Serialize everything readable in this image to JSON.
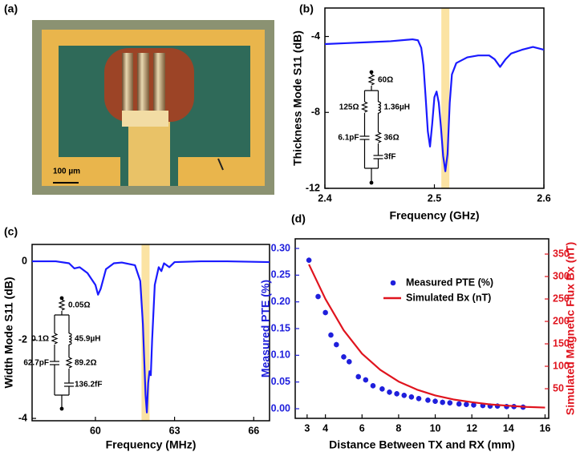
{
  "image": {
    "label": "(a)",
    "scale_bar": "100 µm"
  },
  "chart_data": [
    {
      "type": "line",
      "panel_label": "(b)",
      "xlabel": "Frequency (GHz)",
      "ylabel": "Thickness Mode  S11 (dB)",
      "xlim": [
        2.4,
        2.6
      ],
      "xticks": [
        2.4,
        2.5,
        2.6
      ],
      "ylim": [
        -12,
        -2.5
      ],
      "yticks": [
        -4,
        -8,
        -12
      ],
      "highlight_x": 2.51,
      "color": "#1a1aff",
      "x": [
        2.4,
        2.42,
        2.44,
        2.46,
        2.48,
        2.485,
        2.488,
        2.49,
        2.492,
        2.494,
        2.496,
        2.498,
        2.5,
        2.502,
        2.504,
        2.506,
        2.508,
        2.51,
        2.512,
        2.514,
        2.516,
        2.52,
        2.53,
        2.54,
        2.55,
        2.555,
        2.56,
        2.565,
        2.57,
        2.58,
        2.59,
        2.6
      ],
      "values": [
        -4.4,
        -4.35,
        -4.3,
        -4.25,
        -4.15,
        -4.2,
        -4.6,
        -5.5,
        -7.2,
        -9.0,
        -9.8,
        -8.6,
        -7.2,
        -6.9,
        -7.5,
        -8.8,
        -10.3,
        -11.1,
        -10.2,
        -7.5,
        -6.0,
        -5.4,
        -5.1,
        -5.0,
        -5.0,
        -5.2,
        -5.6,
        -5.2,
        -4.9,
        -4.7,
        -4.55,
        -4.7
      ],
      "circuit_labels": [
        "60Ω",
        "125Ω",
        "1.36µH",
        "6.1pF",
        "36Ω",
        "3fF"
      ]
    },
    {
      "type": "line",
      "panel_label": "(c)",
      "xlabel": "Frequency (MHz)",
      "ylabel": "Width Mode  S11 (dB)",
      "xlim": [
        57.6,
        66.6
      ],
      "xticks": [
        60,
        63,
        66
      ],
      "ylim": [
        -4.06,
        0.43
      ],
      "yticks": [
        0,
        -2,
        -4
      ],
      "highlight_x": 61.9,
      "color": "#1a1aff",
      "x": [
        57.6,
        58.5,
        59.0,
        59.2,
        59.4,
        59.7,
        60.0,
        60.1,
        60.2,
        60.4,
        60.7,
        61.0,
        61.5,
        61.7,
        61.8,
        61.9,
        61.95,
        62.0,
        62.05,
        62.1,
        62.15,
        62.25,
        62.4,
        62.5,
        62.6,
        62.8,
        63.0,
        64,
        65,
        66.6
      ],
      "values": [
        0,
        0,
        -0.05,
        -0.18,
        -0.15,
        -0.3,
        -0.6,
        -0.85,
        -0.7,
        -0.2,
        -0.05,
        -0.03,
        -0.1,
        -0.5,
        -1.6,
        -3.4,
        -3.85,
        -3.1,
        -2.8,
        -2.9,
        -2.0,
        -0.6,
        -0.15,
        -0.25,
        -0.05,
        -0.15,
        -0.02,
        0,
        0,
        -0.02
      ],
      "circuit_labels": [
        "0.05Ω",
        "0.1Ω",
        "45.9µH",
        "62.7pF",
        "89.2Ω",
        "136.2fF"
      ]
    },
    {
      "type": "dual",
      "panel_label": "(d)",
      "xlabel": "Distance Between TX and RX (mm)",
      "ylabel": "Measured PTE (%)",
      "y2label": "Simulated Magnetic Flux Bx (nT)",
      "xlim": [
        2.35,
        16.2
      ],
      "xticks": [
        3,
        4,
        6,
        8,
        10,
        12,
        14,
        16
      ],
      "ylim": [
        -0.018,
        0.318
      ],
      "yticks": [
        {
          "value": 0,
          "label": "0.00"
        },
        0.05,
        {
          "value": 0.1,
          "label": "0.10"
        },
        0.15,
        {
          "value": 0.2,
          "label": "0.20"
        },
        0.25,
        {
          "value": 0.3,
          "label": "0.30"
        }
      ],
      "y2lim": [
        -16,
        384
      ],
      "y2ticks": [
        50,
        100,
        150,
        200,
        250,
        300,
        350
      ],
      "legend": "upper right",
      "series": [
        {
          "name": "Measured PTE (%)",
          "type": "scatter",
          "color": "#1f1fdc",
          "x": [
            3.1,
            3.6,
            4.0,
            4.3,
            4.6,
            5.0,
            5.3,
            5.8,
            6.2,
            6.6,
            7.1,
            7.5,
            7.9,
            8.3,
            8.7,
            9.1,
            9.6,
            10.0,
            10.4,
            10.8,
            11.3,
            11.7,
            12.1,
            12.6,
            13.0,
            13.4,
            13.9,
            14.3,
            14.8
          ],
          "values": [
            0.278,
            0.21,
            0.18,
            0.138,
            0.12,
            0.097,
            0.088,
            0.06,
            0.054,
            0.043,
            0.037,
            0.031,
            0.028,
            0.025,
            0.022,
            0.019,
            0.016,
            0.014,
            0.012,
            0.011,
            0.009,
            0.008,
            0.007,
            0.006,
            0.005,
            0.005,
            0.004,
            0.004,
            0.003
          ],
          "errors": [
            0.005,
            0.005,
            0.005,
            0.005,
            0.005,
            0.005,
            0.005,
            0.005,
            0.005,
            0.005,
            0.005,
            0.005,
            0.005,
            0.005,
            0.005,
            0.005,
            0.005,
            0.005,
            0.005,
            0.005,
            0.005,
            0.005,
            0.005,
            0.005,
            0.005,
            0.005,
            0.005,
            0.005,
            0.005
          ]
        },
        {
          "name": "Simulated Bx (nT)",
          "type": "line",
          "axis": "y2",
          "color": "#e0141e",
          "x": [
            3.1,
            4,
            5,
            6,
            7,
            8,
            9,
            10,
            11,
            12,
            13,
            14,
            15,
            16
          ],
          "values": [
            327,
            250,
            180,
            128,
            92,
            66,
            48,
            35,
            26,
            20,
            15,
            12,
            9.5,
            8
          ]
        }
      ]
    }
  ]
}
